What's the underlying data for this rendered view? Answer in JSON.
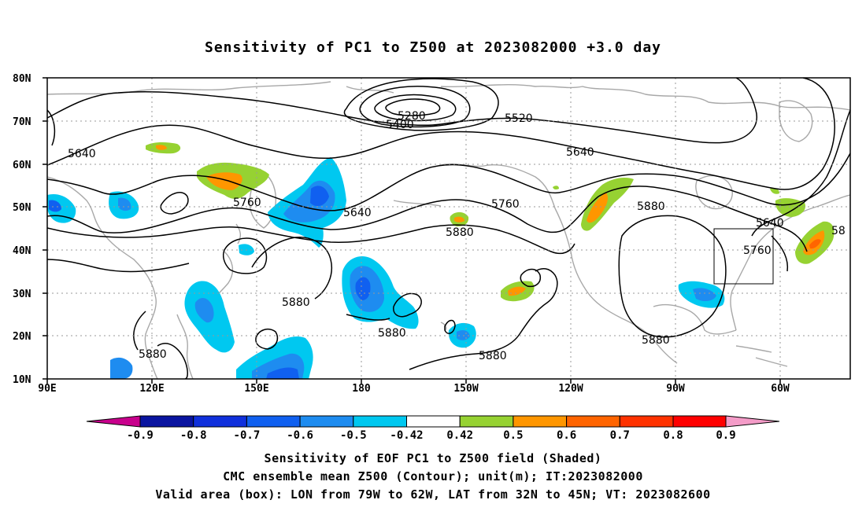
{
  "title": "Sensitivity of PC1 to Z500 at 2023082000 +3.0 day",
  "lat_ticks": [
    "80N",
    "70N",
    "60N",
    "50N",
    "40N",
    "30N",
    "20N",
    "10N"
  ],
  "lon_ticks": [
    "90E",
    "120E",
    "150E",
    "180",
    "150W",
    "120W",
    "90W",
    "60W"
  ],
  "contour_labels": [
    "5280",
    "5400",
    "5520",
    "5640",
    "5640",
    "5640",
    "5640",
    "5760",
    "5760",
    "5760",
    "5880",
    "5880",
    "5880",
    "5880",
    "5880",
    "5880",
    "5880",
    "58"
  ],
  "colorbar": {
    "labels": [
      "-0.9",
      "-0.8",
      "-0.7",
      "-0.6",
      "-0.5",
      "-0.42",
      "0.42",
      "0.5",
      "0.6",
      "0.7",
      "0.8",
      "0.9"
    ],
    "colors": [
      "#c8008c",
      "#0a14a0",
      "#1030dc",
      "#1060f0",
      "#1e8cf0",
      "#00c8f0",
      "#ffffff",
      "#96d232",
      "#ff9600",
      "#ff6400",
      "#ff3200",
      "#ff0000",
      "#f49cc8"
    ]
  },
  "captions": [
    "Sensitivity of EOF PC1 to Z500 field (Shaded)",
    "CMC ensemble mean Z500 (Contour); unit(m); IT:2023082000",
    "Valid area (box): LON from 79W to 62W, LAT from 32N to 45N; VT: 2023082600"
  ]
}
